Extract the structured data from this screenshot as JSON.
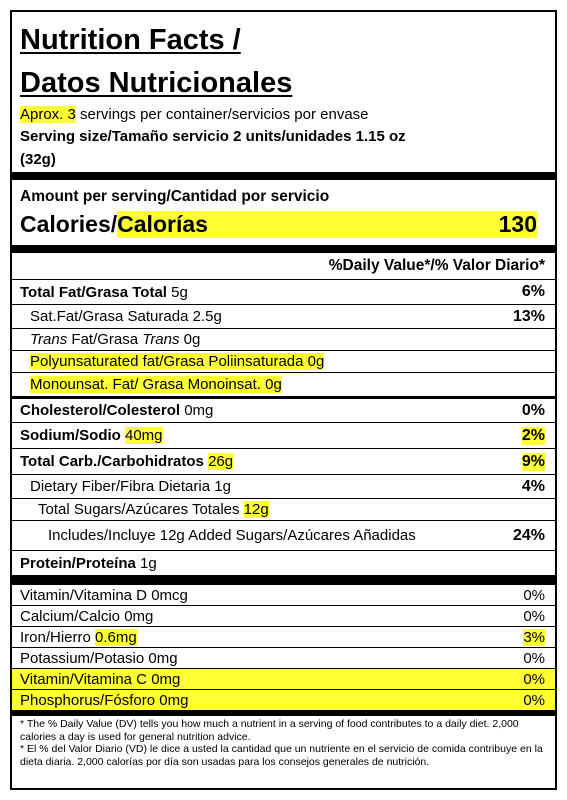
{
  "header": {
    "title_line1": "Nutrition Facts /",
    "title_line2": "Datos Nutricionales",
    "servings_highlight": "Aprox. 3",
    "servings_rest": " servings per container/servicios por envase",
    "serving_size": "Serving size/Tamaño servicio 2 units/unidades  1.15 oz",
    "serving_size_grams": "(32g)"
  },
  "calories": {
    "heading": "Amount per serving/Cantidad por servicio",
    "label": "Calories/",
    "label_es": "Calorías",
    "value": 130
  },
  "daily_value_heading": "%Daily Value*/% Valor Diario*",
  "nutrients": [
    {
      "name": "Total Fat/Grasa Total",
      "amount": "5g",
      "dv": "6%"
    },
    {
      "name": "Sat.Fat/Grasa Saturada",
      "amount": "2.5g",
      "dv": "13%"
    },
    {
      "name_parts": [
        "Trans",
        " Fat/Grasa ",
        "Trans"
      ],
      "amount": "0g"
    },
    {
      "name": "Polyunsaturated fat/Grasa Poliinsaturada",
      "amount": "0g"
    },
    {
      "name": "Monounsat. Fat/ Grasa Monoinsat.",
      "amount": "0g"
    },
    {
      "name": "Cholesterol/Colesterol",
      "amount": "0mg",
      "dv": "0%"
    },
    {
      "name": "Sodium/Sodio",
      "amount": "40mg",
      "dv": "2%"
    },
    {
      "name": "Total Carb./Carbohidratos",
      "amount": "26g",
      "dv": "9%"
    },
    {
      "name": "Dietary Fiber/Fibra Dietaria",
      "amount": "1g",
      "dv": "4%"
    },
    {
      "name": "Total Sugars/Azúcares Totales",
      "amount": "12g"
    },
    {
      "name": "Includes/Incluye 12g Added Sugars/Azúcares Añadidas",
      "dv": "24%"
    },
    {
      "name": "Protein/Proteína",
      "amount": "1g"
    }
  ],
  "vitamins": [
    {
      "name": "Vitamin/Vitamina D",
      "amount": "0mcg",
      "dv": "0%"
    },
    {
      "name": "Calcium/Calcio",
      "amount": "0mg",
      "dv": "0%"
    },
    {
      "name": "Iron/Hierro",
      "amount": "0.6mg",
      "dv": "3%"
    },
    {
      "name": "Potassium/Potasio",
      "amount": "0mg",
      "dv": "0%"
    },
    {
      "name": "Vitamin/Vitamina C",
      "amount": "0mg",
      "dv": "0%"
    },
    {
      "name": "Phosphorus/Fósforo",
      "amount": "0mg",
      "dv": "0%"
    }
  ],
  "footnotes": [
    "* The % Daily Value (DV) tells you how much a nutrient in a serving of food contributes to a daily diet. 2,000 calories a day is used for general nutrition advice.",
    "* El % del Valor Diario (VD) le dice a usted la cantidad que un nutriente en el servicio de comida contribuye en la dieta diaria. 2,000 calorías por día son usadas para los consejos generales de nutrición."
  ]
}
